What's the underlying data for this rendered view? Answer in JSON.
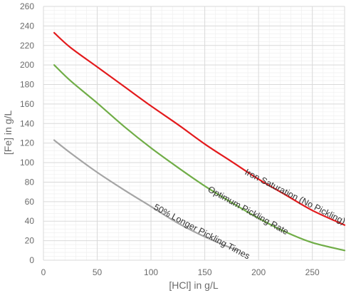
{
  "chart_data": {
    "type": "line",
    "title": "",
    "xlabel": "[HCl] in g/L",
    "ylabel": "[Fe] in g/L",
    "xlim": [
      0,
      280
    ],
    "ylim": [
      0,
      260
    ],
    "x_ticks": [
      0,
      50,
      100,
      150,
      200,
      250
    ],
    "y_ticks": [
      0,
      20,
      40,
      60,
      80,
      100,
      120,
      140,
      160,
      180,
      200,
      220,
      240,
      260
    ],
    "grid": true,
    "legend": "none",
    "series": [
      {
        "name": "Iron Saturation (No Pickling)",
        "color": "#e31a1c",
        "x": [
          10,
          25,
          50,
          75,
          100,
          125,
          150,
          175,
          200,
          225,
          250,
          280
        ],
        "y": [
          233,
          218,
          198,
          178,
          158,
          139,
          119,
          101,
          83,
          67,
          51,
          36
        ]
      },
      {
        "name": "Optimum Pickling Rate",
        "color": "#70ad47",
        "x": [
          10,
          25,
          50,
          75,
          100,
          125,
          150,
          175,
          200,
          225,
          250,
          280
        ],
        "y": [
          200,
          184,
          161,
          137,
          115,
          95,
          76,
          59,
          43,
          29,
          18,
          10
        ]
      },
      {
        "name": "50% Longer Pickling Times",
        "color": "#a5a5a5",
        "x": [
          10,
          25,
          50,
          75,
          100,
          125,
          150,
          180
        ],
        "y": [
          123,
          110,
          90,
          72,
          55,
          38,
          24,
          10
        ]
      }
    ]
  }
}
